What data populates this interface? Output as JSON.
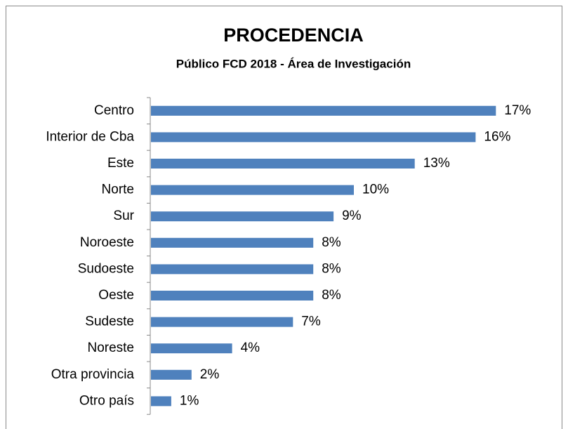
{
  "chart_data": {
    "type": "bar",
    "orientation": "horizontal",
    "title": "PROCEDENCIA",
    "subtitle": "Público FCD 2018 - Área de Investigación",
    "categories": [
      "Centro",
      "Interior de Cba",
      "Este",
      "Norte",
      "Sur",
      "Noroeste",
      "Sudoeste",
      "Oeste",
      "Sudeste",
      "Noreste",
      "Otra provincia",
      "Otro país"
    ],
    "values": [
      17,
      16,
      13,
      10,
      9,
      8,
      8,
      8,
      7,
      4,
      2,
      1
    ],
    "value_labels": [
      "17%",
      "16%",
      "13%",
      "10%",
      "9%",
      "8%",
      "8%",
      "8%",
      "7%",
      "4%",
      "2%",
      "1%"
    ],
    "color": "#4f81bd"
  }
}
